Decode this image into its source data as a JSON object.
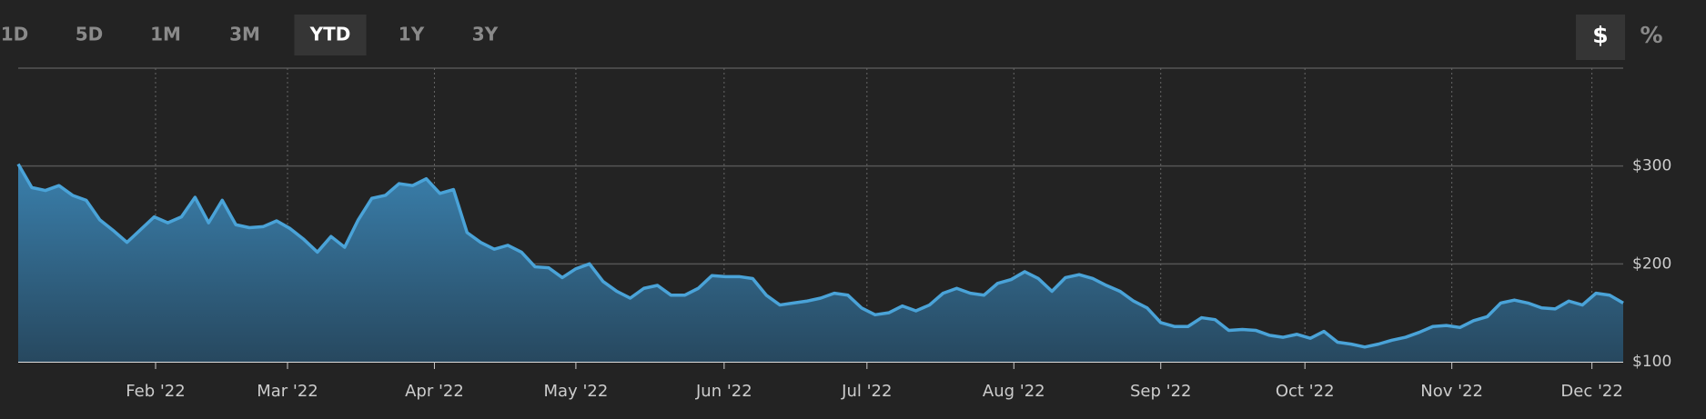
{
  "range_buttons": [
    "1D",
    "5D",
    "1M",
    "3M",
    "YTD",
    "1Y",
    "3Y"
  ],
  "active_range": "YTD",
  "unit_buttons": [
    "$",
    "%"
  ],
  "active_unit": "$",
  "chart_data": {
    "type": "area",
    "color": "#4aa3d8",
    "xlim": [
      0,
      118
    ],
    "xticks": [
      {
        "value": 10.1,
        "label": "Feb '22"
      },
      {
        "value": 19.8,
        "label": "Mar '22"
      },
      {
        "value": 30.6,
        "label": "Apr '22"
      },
      {
        "value": 41,
        "label": "May '22"
      },
      {
        "value": 51.9,
        "label": "Jun '22"
      },
      {
        "value": 62.4,
        "label": "Jul '22"
      },
      {
        "value": 73.2,
        "label": "Aug '22"
      },
      {
        "value": 84,
        "label": "Sep '22"
      },
      {
        "value": 94.6,
        "label": "Oct '22"
      },
      {
        "value": 105.4,
        "label": "Nov '22"
      },
      {
        "value": 115.7,
        "label": "Dec '22"
      }
    ],
    "ylim": [
      100,
      400
    ],
    "yticks": [
      {
        "value": 100,
        "label": "$100"
      },
      {
        "value": 200,
        "label": "$200"
      },
      {
        "value": 300,
        "label": "$300"
      }
    ],
    "values": [
      302,
      278,
      275,
      280,
      270,
      265,
      245,
      234,
      222,
      235,
      248,
      242,
      248,
      268,
      242,
      265,
      240,
      237,
      238,
      244,
      236,
      225,
      212,
      228,
      217,
      245,
      267,
      270,
      282,
      280,
      287,
      272,
      276,
      232,
      222,
      215,
      219,
      212,
      197,
      196,
      186,
      195,
      200,
      182,
      172,
      165,
      175,
      178,
      168,
      168,
      175,
      188,
      187,
      187,
      185,
      168,
      158,
      160,
      162,
      165,
      170,
      168,
      155,
      148,
      150,
      157,
      152,
      158,
      170,
      175,
      170,
      168,
      180,
      184,
      192,
      185,
      172,
      186,
      189,
      185,
      178,
      172,
      162,
      155,
      140,
      136,
      136,
      145,
      143,
      132,
      133,
      132,
      127,
      125,
      128,
      124,
      131,
      120,
      118,
      115,
      118,
      122,
      125,
      130,
      136,
      137,
      135,
      142,
      146,
      160,
      163,
      160,
      155,
      154,
      162,
      158,
      170,
      168,
      160
    ]
  }
}
